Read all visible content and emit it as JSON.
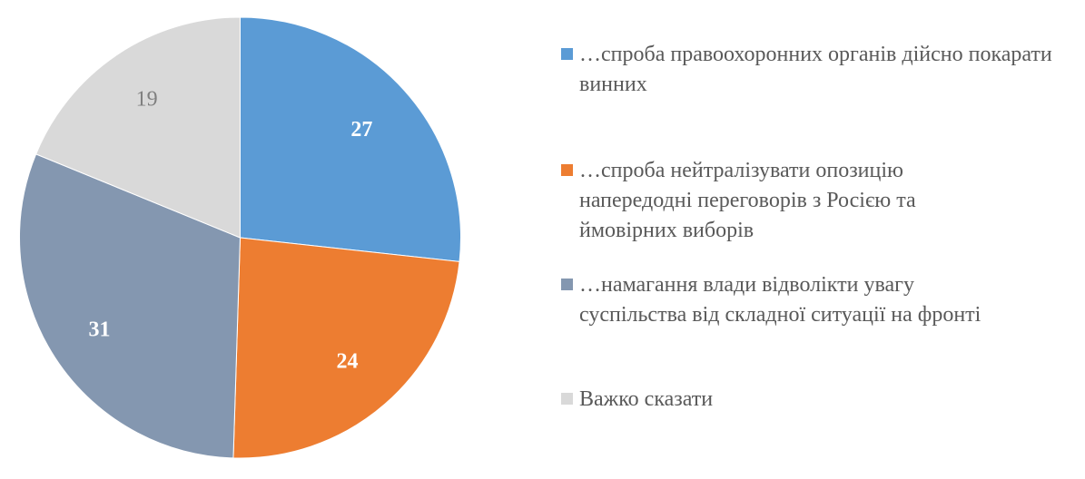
{
  "chart_data": {
    "type": "pie",
    "title": "",
    "start_angle_deg": 0,
    "direction": "clockwise",
    "categories": [
      "…спроба правоохоронних органів дійсно покарати винних",
      "…спроба нейтралізувати опозицію напередодні переговорів з Росією та ймовірних виборів",
      "…намагання влади відволікти увагу суспільства від складної ситуації на фронті",
      "Важко сказати"
    ],
    "values": [
      27,
      24,
      31,
      19
    ],
    "colors": [
      "#5B9BD5",
      "#ED7D31",
      "#8497B0",
      "#D9D9D9"
    ],
    "data_labels": [
      "27",
      "24",
      "31",
      "19"
    ],
    "label_colors": [
      "#FFFFFF",
      "#FFFFFF",
      "#FFFFFF",
      "#7F7F7F"
    ],
    "label_bold": [
      true,
      true,
      true,
      false
    ],
    "legend_position": "right"
  },
  "legend": {
    "items": [
      {
        "label": "…спроба правоохоронних органів дійсно покарати винних",
        "color": "#5B9BD5"
      },
      {
        "label": "…спроба нейтралізувати опозицію напередодні переговорів з Росією та ймовірних виборів",
        "color": "#ED7D31"
      },
      {
        "label": "…намагання влади відволікти увагу суспільства від складної ситуації на фронті",
        "color": "#8497B0"
      },
      {
        "label": "Важко сказати",
        "color": "#D9D9D9"
      }
    ]
  }
}
